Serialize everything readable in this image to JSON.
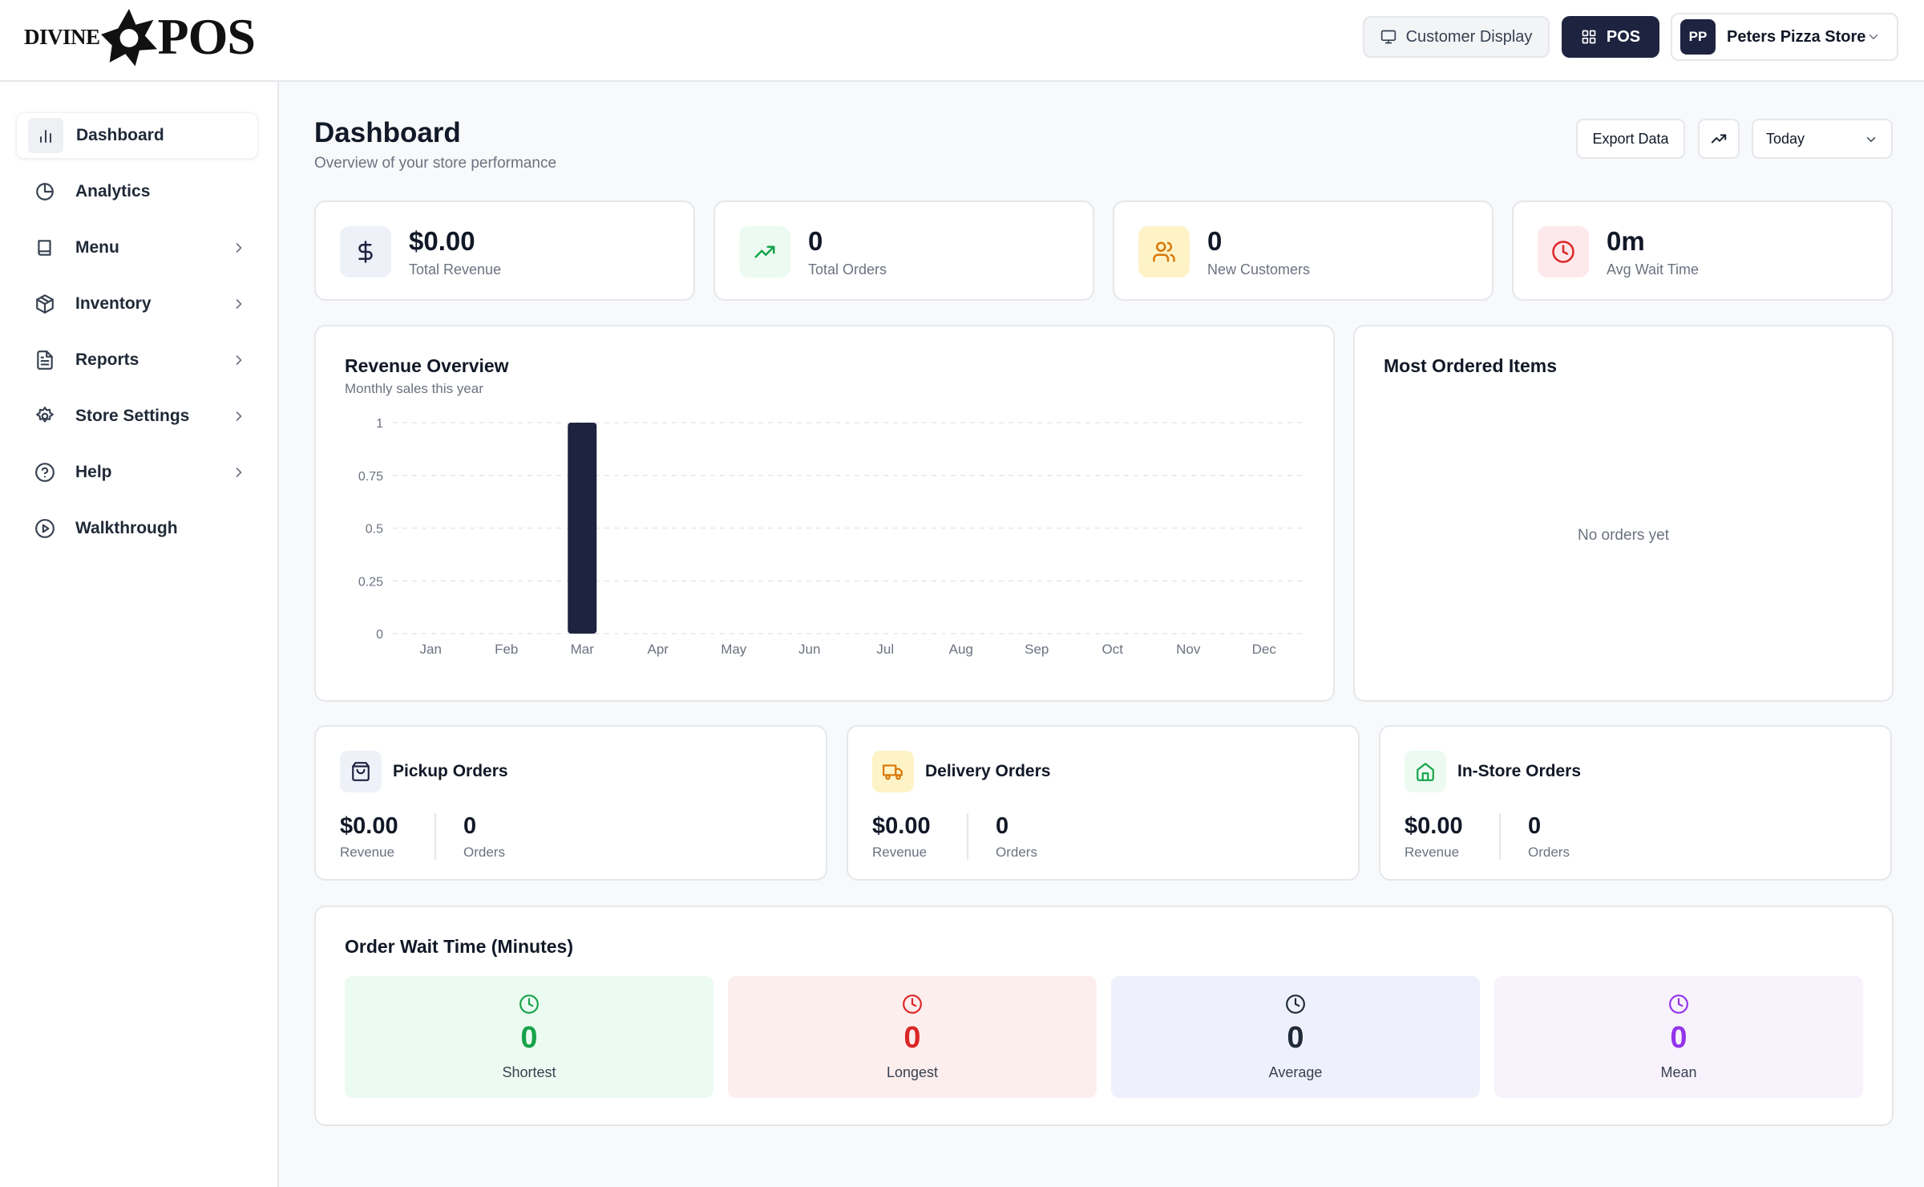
{
  "header": {
    "logo_small": "DIVINE",
    "logo_big": "POS",
    "customer_display_label": "Customer Display",
    "pos_label": "POS",
    "store": {
      "initials": "PP",
      "name": "Peters Pizza Store"
    }
  },
  "sidebar": {
    "items": [
      {
        "label": "Dashboard",
        "icon": "bar-chart-icon",
        "active": true
      },
      {
        "label": "Analytics",
        "icon": "pie-chart-icon"
      },
      {
        "label": "Menu",
        "icon": "book-icon",
        "has_submenu": true
      },
      {
        "label": "Inventory",
        "icon": "package-icon",
        "has_submenu": true
      },
      {
        "label": "Reports",
        "icon": "file-text-icon",
        "has_submenu": true
      },
      {
        "label": "Store Settings",
        "icon": "gear-icon",
        "has_submenu": true
      },
      {
        "label": "Help",
        "icon": "help-circle-icon",
        "has_submenu": true
      },
      {
        "label": "Walkthrough",
        "icon": "play-circle-icon"
      }
    ]
  },
  "page": {
    "title": "Dashboard",
    "subtitle": "Overview of your store performance",
    "export_label": "Export Data",
    "range_value": "Today"
  },
  "stats": [
    {
      "value": "$0.00",
      "label": "Total Revenue",
      "icon": "dollar-icon",
      "bg": "#eef1f8",
      "color": "#1e2340"
    },
    {
      "value": "0",
      "label": "Total Orders",
      "icon": "trending-up-icon",
      "bg": "#ecfaf1",
      "color": "#16a34a"
    },
    {
      "value": "0",
      "label": "New Customers",
      "icon": "users-icon",
      "bg": "#fef3c7",
      "color": "#d97706"
    },
    {
      "value": "0m",
      "label": "Avg Wait Time",
      "icon": "clock-icon",
      "bg": "#fde8ec",
      "color": "#dc2626"
    }
  ],
  "revenue": {
    "title": "Revenue Overview",
    "subtitle": "Monthly sales this year"
  },
  "chart_data": {
    "type": "bar",
    "title": "Revenue Overview",
    "subtitle": "Monthly sales this year",
    "categories": [
      "Jan",
      "Feb",
      "Mar",
      "Apr",
      "May",
      "Jun",
      "Jul",
      "Aug",
      "Sep",
      "Oct",
      "Nov",
      "Dec"
    ],
    "values": [
      0,
      0,
      1,
      0,
      0,
      0,
      0,
      0,
      0,
      0,
      0,
      0
    ],
    "ylim": [
      0,
      1
    ],
    "yticks": [
      "0",
      "0.25",
      "0.5",
      "0.75",
      "1"
    ],
    "grid": true,
    "bar_color": "#1e2340"
  },
  "most_ordered": {
    "title": "Most Ordered Items",
    "empty": "No orders yet"
  },
  "orders": [
    {
      "title": "Pickup Orders",
      "revenue": "$0.00",
      "revenue_label": "Revenue",
      "count": "0",
      "count_label": "Orders",
      "icon": "shopping-bag-icon",
      "bg": "#eef1f8",
      "color": "#1e2340"
    },
    {
      "title": "Delivery Orders",
      "revenue": "$0.00",
      "revenue_label": "Revenue",
      "count": "0",
      "count_label": "Orders",
      "icon": "truck-icon",
      "bg": "#fef3c7",
      "color": "#d97706"
    },
    {
      "title": "In-Store Orders",
      "revenue": "$0.00",
      "revenue_label": "Revenue",
      "count": "0",
      "count_label": "Orders",
      "icon": "store-icon",
      "bg": "#ecfaf1",
      "color": "#16a34a"
    }
  ],
  "wait": {
    "title": "Order Wait Time (Minutes)",
    "tiles": [
      {
        "value": "0",
        "label": "Shortest",
        "bg": "#ecfbf1",
        "color": "#16a34a"
      },
      {
        "value": "0",
        "label": "Longest",
        "bg": "#fdeeee",
        "color": "#dc2626"
      },
      {
        "value": "0",
        "label": "Average",
        "bg": "#eef1fc",
        "color": "#1f2937"
      },
      {
        "value": "0",
        "label": "Mean",
        "bg": "#f8f2fd",
        "color": "#9333ea"
      }
    ]
  }
}
